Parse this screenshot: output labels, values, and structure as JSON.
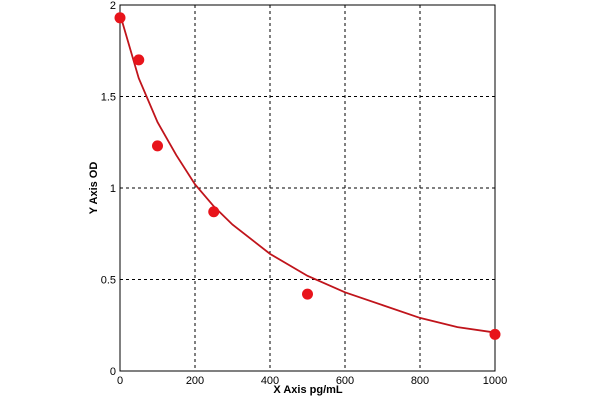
{
  "chart_data": {
    "type": "scatter",
    "x_label": "X Axis pg/mL",
    "y_label": "Y Axis OD",
    "xlim": [
      0,
      1000
    ],
    "ylim": [
      0,
      2
    ],
    "xticks": [
      0,
      200,
      400,
      600,
      800,
      1000
    ],
    "yticks": [
      0,
      0.5,
      1,
      1.5,
      2
    ],
    "grid": true,
    "points": {
      "color": "#e8141b",
      "x": [
        0,
        50,
        100,
        250,
        500,
        1000
      ],
      "values": [
        1.93,
        1.7,
        1.23,
        0.87,
        0.42,
        0.2
      ]
    },
    "curve": {
      "color": "#c0141b",
      "x": [
        0,
        50,
        100,
        150,
        200,
        250,
        300,
        400,
        500,
        600,
        700,
        800,
        900,
        1000
      ],
      "values": [
        1.95,
        1.6,
        1.36,
        1.18,
        1.02,
        0.9,
        0.8,
        0.64,
        0.52,
        0.43,
        0.36,
        0.29,
        0.24,
        0.21
      ]
    }
  }
}
